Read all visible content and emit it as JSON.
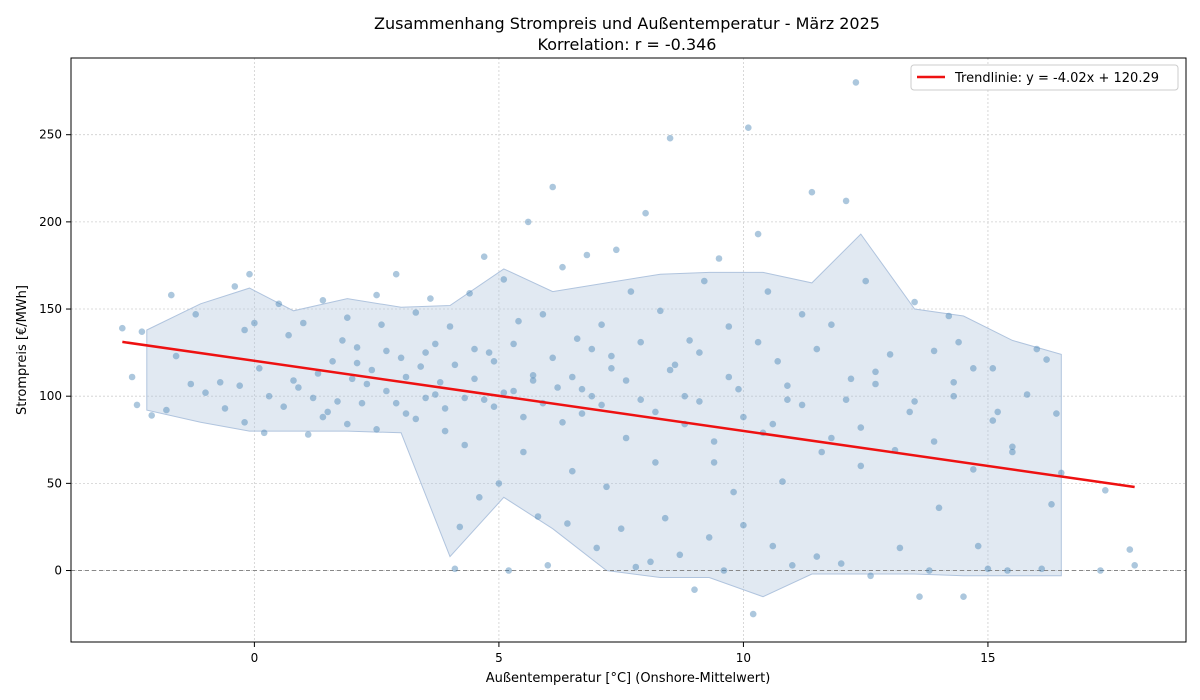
{
  "chart_data": {
    "type": "scatter",
    "title": "Zusammenhang Strompreis und Außentemperatur - März 2025",
    "subtitle": "Korrelation: r = -0.346",
    "xlabel": "Außentemperatur [°C] (Onshore-Mittelwert)",
    "ylabel": "Strompreis [€/MWh]",
    "xlim": [
      -3.75,
      19.05
    ],
    "ylim": [
      -41,
      294
    ],
    "xticks": [
      0,
      5,
      10,
      15
    ],
    "yticks": [
      0,
      50,
      100,
      150,
      200,
      250
    ],
    "grid": true,
    "zero_reference_line": 0,
    "legend_position": "top-right",
    "colors": {
      "points": "#4682b4",
      "band": "#b0c4de",
      "trend": "#ee1111"
    },
    "trendline": {
      "label": "Trendlinie: y = -4.02x + 120.29",
      "slope": -4.02,
      "intercept": 120.29,
      "x_range": [
        -2.7,
        18.0
      ]
    },
    "band": {
      "x": [
        -2.2,
        -1.1,
        -0.1,
        0.8,
        1.9,
        3.0,
        4.0,
        5.1,
        6.1,
        7.2,
        8.3,
        9.3,
        10.4,
        11.4,
        12.4,
        13.5,
        14.5,
        15.5,
        16.5
      ],
      "upper": [
        138,
        153,
        162,
        149,
        156,
        151,
        152,
        173,
        160,
        165,
        170,
        171,
        171,
        165,
        193,
        150,
        146,
        132,
        124
      ],
      "lower": [
        92,
        85,
        80,
        80,
        80,
        79,
        8,
        42,
        24,
        0,
        -4,
        -4,
        -15,
        -2,
        -2,
        -2,
        -3,
        -3,
        -3
      ]
    },
    "points": [
      [
        -2.7,
        139
      ],
      [
        -2.5,
        111
      ],
      [
        -2.4,
        95
      ],
      [
        -2.3,
        137
      ],
      [
        -2.1,
        89
      ],
      [
        -1.8,
        92
      ],
      [
        -1.6,
        123
      ],
      [
        -1.7,
        158
      ],
      [
        -1.3,
        107
      ],
      [
        -1.2,
        147
      ],
      [
        -1.0,
        102
      ],
      [
        -0.7,
        108
      ],
      [
        -0.6,
        93
      ],
      [
        -0.4,
        163
      ],
      [
        -0.3,
        106
      ],
      [
        -0.2,
        85
      ],
      [
        -0.2,
        138
      ],
      [
        -0.1,
        170
      ],
      [
        0.0,
        142
      ],
      [
        0.1,
        116
      ],
      [
        0.2,
        79
      ],
      [
        0.5,
        153
      ],
      [
        0.7,
        135
      ],
      [
        0.8,
        109
      ],
      [
        1.0,
        142
      ],
      [
        1.2,
        99
      ],
      [
        1.4,
        155
      ],
      [
        1.4,
        88
      ],
      [
        1.6,
        120
      ],
      [
        1.8,
        132
      ],
      [
        1.9,
        145
      ],
      [
        2.0,
        110
      ],
      [
        2.1,
        128
      ],
      [
        2.2,
        96
      ],
      [
        2.4,
        115
      ],
      [
        2.5,
        158
      ],
      [
        2.6,
        141
      ],
      [
        2.7,
        103
      ],
      [
        2.9,
        170
      ],
      [
        3.0,
        122
      ],
      [
        3.1,
        90
      ],
      [
        3.3,
        148
      ],
      [
        3.4,
        117
      ],
      [
        3.5,
        99
      ],
      [
        3.6,
        156
      ],
      [
        3.7,
        130
      ],
      [
        3.8,
        108
      ],
      [
        3.9,
        80
      ],
      [
        4.0,
        140
      ],
      [
        4.1,
        1
      ],
      [
        4.2,
        25
      ],
      [
        4.3,
        72
      ],
      [
        4.4,
        159
      ],
      [
        4.5,
        110
      ],
      [
        4.6,
        42
      ],
      [
        4.7,
        180
      ],
      [
        4.8,
        125
      ],
      [
        4.9,
        94
      ],
      [
        5.0,
        50
      ],
      [
        5.1,
        167
      ],
      [
        5.2,
        0
      ],
      [
        5.3,
        103
      ],
      [
        5.4,
        143
      ],
      [
        5.5,
        68
      ],
      [
        5.6,
        200
      ],
      [
        5.7,
        112
      ],
      [
        5.8,
        31
      ],
      [
        5.9,
        147
      ],
      [
        6.0,
        3
      ],
      [
        6.1,
        220
      ],
      [
        6.2,
        105
      ],
      [
        6.3,
        174
      ],
      [
        6.4,
        27
      ],
      [
        6.5,
        57
      ],
      [
        6.6,
        133
      ],
      [
        6.7,
        90
      ],
      [
        6.8,
        181
      ],
      [
        6.9,
        100
      ],
      [
        7.0,
        13
      ],
      [
        7.1,
        141
      ],
      [
        7.2,
        48
      ],
      [
        7.3,
        123
      ],
      [
        7.4,
        184
      ],
      [
        7.5,
        24
      ],
      [
        7.6,
        76
      ],
      [
        7.7,
        160
      ],
      [
        7.8,
        2
      ],
      [
        7.9,
        98
      ],
      [
        8.0,
        205
      ],
      [
        8.1,
        5
      ],
      [
        8.2,
        62
      ],
      [
        8.3,
        149
      ],
      [
        8.4,
        30
      ],
      [
        8.5,
        248
      ],
      [
        8.6,
        118
      ],
      [
        8.7,
        9
      ],
      [
        8.8,
        84
      ],
      [
        8.9,
        132
      ],
      [
        9.0,
        -11
      ],
      [
        9.1,
        97
      ],
      [
        9.2,
        166
      ],
      [
        9.3,
        19
      ],
      [
        9.4,
        62
      ],
      [
        9.5,
        179
      ],
      [
        9.6,
        0
      ],
      [
        9.7,
        140
      ],
      [
        9.8,
        45
      ],
      [
        9.9,
        104
      ],
      [
        10.0,
        26
      ],
      [
        10.1,
        254
      ],
      [
        10.2,
        -25
      ],
      [
        10.3,
        193
      ],
      [
        10.4,
        79
      ],
      [
        10.5,
        160
      ],
      [
        10.6,
        14
      ],
      [
        10.7,
        120
      ],
      [
        10.8,
        51
      ],
      [
        10.9,
        98
      ],
      [
        11.0,
        3
      ],
      [
        11.2,
        147
      ],
      [
        11.4,
        217
      ],
      [
        11.5,
        8
      ],
      [
        11.6,
        68
      ],
      [
        11.8,
        141
      ],
      [
        12.0,
        4
      ],
      [
        12.1,
        212
      ],
      [
        12.2,
        110
      ],
      [
        12.3,
        280
      ],
      [
        12.4,
        60
      ],
      [
        12.5,
        166
      ],
      [
        12.6,
        -3
      ],
      [
        12.7,
        107
      ],
      [
        13.0,
        124
      ],
      [
        13.2,
        13
      ],
      [
        13.4,
        91
      ],
      [
        13.5,
        154
      ],
      [
        13.6,
        -15
      ],
      [
        13.8,
        0
      ],
      [
        13.9,
        126
      ],
      [
        14.0,
        36
      ],
      [
        14.2,
        146
      ],
      [
        14.3,
        100
      ],
      [
        14.4,
        131
      ],
      [
        14.5,
        -15
      ],
      [
        14.7,
        116
      ],
      [
        14.8,
        14
      ],
      [
        15.0,
        1
      ],
      [
        15.1,
        116
      ],
      [
        15.2,
        91
      ],
      [
        15.4,
        0
      ],
      [
        15.5,
        71
      ],
      [
        15.8,
        101
      ],
      [
        16.0,
        127
      ],
      [
        16.1,
        1
      ],
      [
        16.2,
        121
      ],
      [
        16.3,
        38
      ],
      [
        16.4,
        90
      ],
      [
        16.5,
        56
      ],
      [
        17.3,
        0
      ],
      [
        17.4,
        46
      ],
      [
        17.9,
        12
      ],
      [
        18.0,
        3
      ],
      [
        0.3,
        100
      ],
      [
        0.6,
        94
      ],
      [
        0.9,
        105
      ],
      [
        1.1,
        78
      ],
      [
        1.3,
        113
      ],
      [
        1.5,
        91
      ],
      [
        1.7,
        97
      ],
      [
        1.9,
        84
      ],
      [
        2.1,
        119
      ],
      [
        2.3,
        107
      ],
      [
        2.5,
        81
      ],
      [
        2.7,
        126
      ],
      [
        2.9,
        96
      ],
      [
        3.1,
        111
      ],
      [
        3.3,
        87
      ],
      [
        3.5,
        125
      ],
      [
        3.7,
        101
      ],
      [
        3.9,
        93
      ],
      [
        4.1,
        118
      ],
      [
        4.3,
        99
      ],
      [
        4.5,
        127
      ],
      [
        4.7,
        98
      ],
      [
        4.9,
        120
      ],
      [
        5.1,
        102
      ],
      [
        5.3,
        130
      ],
      [
        5.5,
        88
      ],
      [
        5.7,
        109
      ],
      [
        5.9,
        96
      ],
      [
        6.1,
        122
      ],
      [
        6.3,
        85
      ],
      [
        6.5,
        111
      ],
      [
        6.7,
        104
      ],
      [
        6.9,
        127
      ],
      [
        7.1,
        95
      ],
      [
        7.3,
        116
      ],
      [
        7.6,
        109
      ],
      [
        7.9,
        131
      ],
      [
        8.2,
        91
      ],
      [
        8.5,
        115
      ],
      [
        8.8,
        100
      ],
      [
        9.1,
        125
      ],
      [
        9.4,
        74
      ],
      [
        9.7,
        111
      ],
      [
        10.0,
        88
      ],
      [
        10.3,
        131
      ],
      [
        10.6,
        84
      ],
      [
        10.9,
        106
      ],
      [
        11.2,
        95
      ],
      [
        11.5,
        127
      ],
      [
        11.8,
        76
      ],
      [
        12.1,
        98
      ],
      [
        12.4,
        82
      ],
      [
        12.7,
        114
      ],
      [
        13.1,
        69
      ],
      [
        13.5,
        97
      ],
      [
        13.9,
        74
      ],
      [
        14.3,
        108
      ],
      [
        14.7,
        58
      ],
      [
        15.1,
        86
      ],
      [
        15.5,
        68
      ]
    ]
  }
}
